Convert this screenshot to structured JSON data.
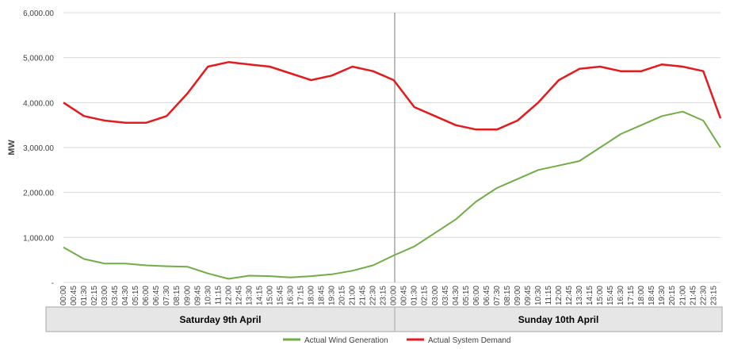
{
  "chart_data": {
    "type": "line",
    "title": "",
    "ylabel": "MW",
    "ylim": [
      0,
      6000
    ],
    "y_ticks": [
      "-",
      "1,000.00",
      "2,000.00",
      "3,000.00",
      "4,000.00",
      "5,000.00",
      "6,000.00"
    ],
    "x_ticks_day1": [
      "00:00",
      "00:45",
      "01:30",
      "02:15",
      "03:00",
      "03:45",
      "04:30",
      "05:15",
      "06:00",
      "06:45",
      "07:30",
      "08:15",
      "09:00",
      "09:45",
      "10:30",
      "11:15",
      "12:00",
      "12:45",
      "13:30",
      "14:15",
      "15:00",
      "15:45",
      "16:30",
      "17:15",
      "18:00",
      "18:45",
      "19:30",
      "20:15",
      "21:00",
      "21:45",
      "22:30",
      "23:15"
    ],
    "x_ticks_day2": [
      "00:00",
      "00:45",
      "01:30",
      "02:15",
      "03:00",
      "03:45",
      "04:30",
      "05:15",
      "06:00",
      "06:45",
      "07:30",
      "08:15",
      "09:00",
      "09:45",
      "10:30",
      "11:15",
      "12:00",
      "12:45",
      "13:30",
      "14:15",
      "15:00",
      "15:45",
      "16:30",
      "17:15",
      "18:00",
      "18:45",
      "19:30",
      "20:15",
      "21:00",
      "21:45",
      "22:30",
      "23:15"
    ],
    "day_labels": [
      "Saturday 9th April",
      "Sunday 10th April"
    ],
    "x_hours": [
      0,
      1.5,
      3,
      4.5,
      6,
      7.5,
      9,
      10.5,
      12,
      13.5,
      15,
      16.5,
      18,
      19.5,
      21,
      22.5,
      24,
      25.5,
      27,
      28.5,
      30,
      31.5,
      33,
      34.5,
      36,
      37.5,
      39,
      40.5,
      42,
      43.5,
      45,
      46.5,
      47.75
    ],
    "legend_position": "bottom",
    "grid": "horizontal",
    "series": [
      {
        "name": "Actual Wind Generation",
        "color": "#70ad47",
        "values": [
          780,
          520,
          420,
          420,
          380,
          360,
          350,
          200,
          80,
          150,
          140,
          110,
          140,
          180,
          260,
          380,
          600,
          800,
          1100,
          1400,
          1800,
          2100,
          2300,
          2500,
          2600,
          2700,
          3000,
          3300,
          3500,
          3700,
          3800,
          3600,
          3000
        ]
      },
      {
        "name": "Actual System Demand",
        "color": "#e41a1c",
        "values": [
          4000,
          3700,
          3600,
          3550,
          3550,
          3700,
          4200,
          4800,
          4900,
          4850,
          4800,
          4650,
          4500,
          4600,
          4800,
          4700,
          4500,
          3900,
          3700,
          3500,
          3400,
          3400,
          3600,
          4000,
          4500,
          4750,
          4800,
          4700,
          4700,
          4850,
          4800,
          4700,
          3650
        ]
      }
    ]
  }
}
